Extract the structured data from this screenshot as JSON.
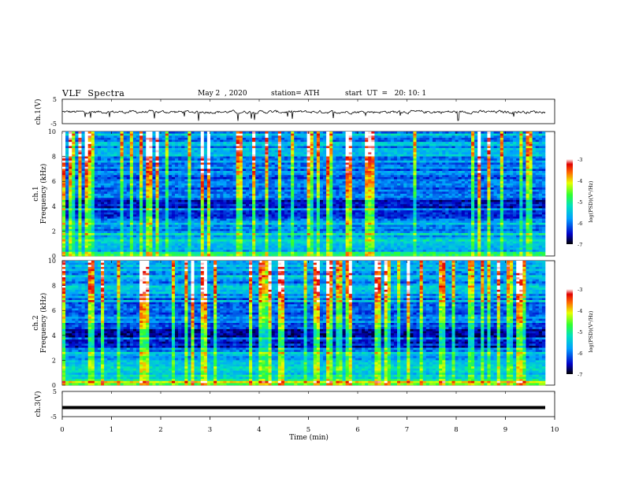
{
  "header": {
    "title": "VLF  Spectra",
    "date": "May 2  , 2020",
    "station": "station= ATH",
    "start_time": "start  UT  =   20: 10: 1"
  },
  "chart_data": [
    {
      "type": "line",
      "panel": "ch.1",
      "ylabel": "ch.1(V)",
      "ylim": [
        -5,
        5
      ],
      "ytick_labels": [
        "5",
        "-5"
      ],
      "xlim": [
        0,
        10
      ],
      "description_values": "noisy waveform centered near 0 V, roughly -1 to +0.5 V with downward spikes",
      "series": [
        {
          "values_x_min": [
            0,
            9.8
          ]
        }
      ]
    },
    {
      "type": "heatmap",
      "panel": "ch.1",
      "ylabel": "Frequency (kHz)",
      "channel_label": "ch.1",
      "ylim": [
        0,
        10
      ],
      "ytick_labels": [
        "0",
        "2",
        "4",
        "6",
        "8",
        "10"
      ],
      "xlim": [
        0,
        10
      ],
      "colorbar": {
        "label": "log(PSD)(V²/Hz)",
        "range": [
          -7,
          -3
        ],
        "tick_labels": [
          "-3",
          "-4",
          "-5",
          "-6",
          "-7"
        ]
      }
    },
    {
      "type": "heatmap",
      "panel": "ch.2",
      "ylabel": "Frequency (kHz)",
      "channel_label": "ch.2",
      "ylim": [
        0,
        10
      ],
      "ytick_labels": [
        "0",
        "2",
        "4",
        "6",
        "8",
        "10"
      ],
      "xlim": [
        0,
        10
      ],
      "colorbar": {
        "label": "log(PSD)(V²/Hz)",
        "range": [
          -7,
          -3
        ],
        "tick_labels": [
          "-3",
          "-4",
          "-5",
          "-6",
          "-7"
        ]
      }
    },
    {
      "type": "line",
      "panel": "ch.3",
      "ylabel": "ch.3(V)",
      "ylim": [
        -5,
        5
      ],
      "ytick_labels": [
        "5",
        "-5"
      ],
      "xlim": [
        0,
        10
      ],
      "series": [
        {
          "constant_value": -1.4
        }
      ]
    }
  ],
  "xaxis": {
    "label": "Time  (min)",
    "tick_labels": [
      "0",
      "1",
      "2",
      "3",
      "4",
      "5",
      "6",
      "7",
      "8",
      "9",
      "10"
    ]
  }
}
